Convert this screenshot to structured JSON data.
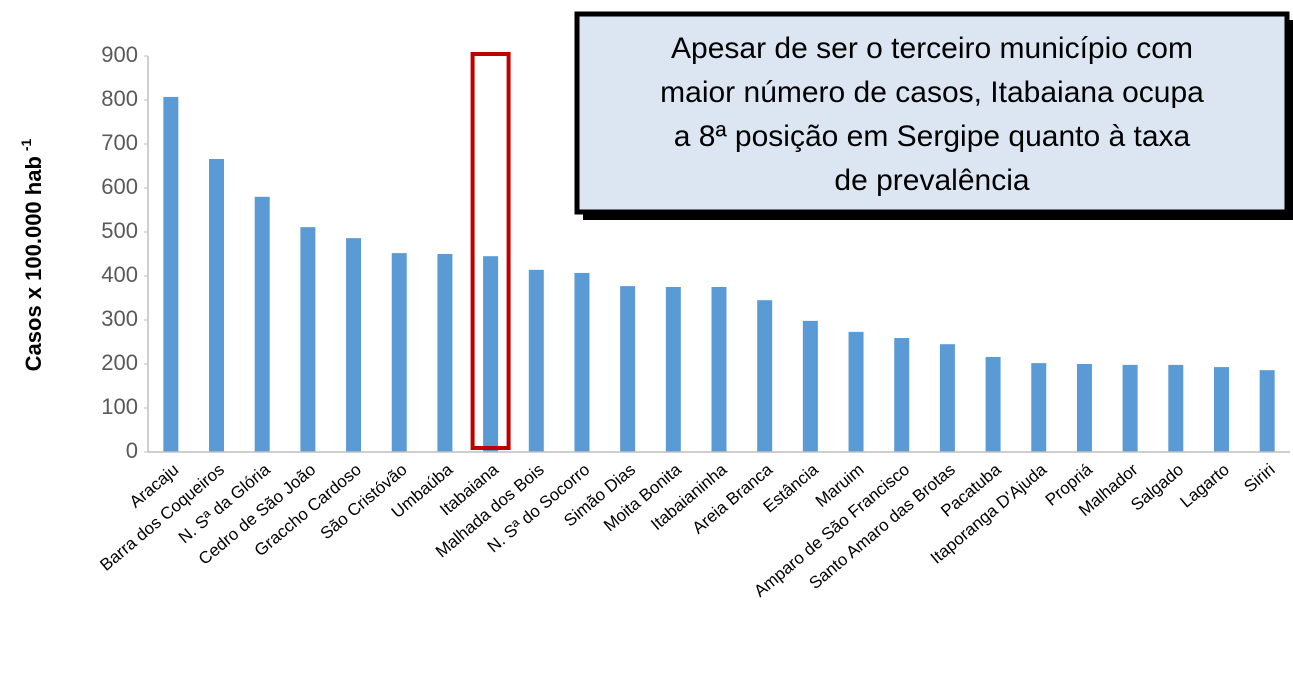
{
  "chart_data": {
    "type": "bar",
    "ylabel": "Casos x 100.000 hab",
    "ylabel_superscript": "-1",
    "annotation": [
      "Apesar de ser o terceiro município com",
      "maior número de casos, Itabaiana ocupa",
      "a 8ª posição em Sergipe quanto à taxa",
      "de prevalência"
    ],
    "categories": [
      "Aracaju",
      "Barra dos Coqueiros",
      "N. Sª da Glória",
      "Cedro de São João",
      "Graccho Cardoso",
      "São Cristóvão",
      "Umbaúba",
      "Itabaiana",
      "Malhada dos Bois",
      "N. Sª do Socorro",
      "Simão Dias",
      "Moita Bonita",
      "Itabaianinha",
      "Areia Branca",
      "Estância",
      "Maruim",
      "Amparo de São Francisco",
      "Santo Amaro das Brotas",
      "Pacatuba",
      "Itaporanga D'Ajuda",
      "Propriá",
      "Malhador",
      "Salgado",
      "Lagarto",
      "Siriri"
    ],
    "values": [
      807,
      666,
      580,
      511,
      486,
      452,
      450,
      445,
      414,
      407,
      377,
      375,
      375,
      345,
      298,
      273,
      259,
      245,
      216,
      202,
      200,
      198,
      198,
      193,
      186
    ],
    "color": "#5b9bd5",
    "highlight": "Itabaiana",
    "highlight_color": "#c00000",
    "ylim": [
      0,
      900
    ],
    "yticks": [
      0,
      100,
      200,
      300,
      400,
      500,
      600,
      700,
      800,
      900
    ]
  }
}
